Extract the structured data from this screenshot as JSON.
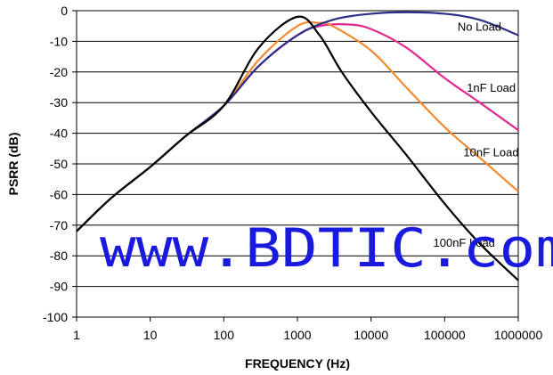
{
  "chart_data": {
    "type": "line",
    "title": "",
    "xlabel": "FREQUENCY (Hz)",
    "ylabel": "PSRR (dB)",
    "xscale": "log",
    "xlim": [
      1,
      1000000
    ],
    "ylim": [
      -100,
      0
    ],
    "grid": "horizontal",
    "x_ticks": [
      "1",
      "10",
      "100",
      "1000",
      "10000",
      "100000",
      "1000000"
    ],
    "y_ticks": [
      "0",
      "-10",
      "-20",
      "-30",
      "-40",
      "-50",
      "-60",
      "-70",
      "-80",
      "-90",
      "-100"
    ],
    "series": [
      {
        "name": "No Load",
        "color": "#2e2f86",
        "x": [
          1,
          3,
          10,
          30,
          100,
          300,
          1000,
          3000,
          10000,
          30000,
          100000,
          300000,
          1000000
        ],
        "y": [
          -72,
          -61,
          -51,
          -41,
          -31,
          -18,
          -8,
          -3,
          -1,
          -0.5,
          -1,
          -3,
          -8
        ]
      },
      {
        "name": "1nF Load",
        "color": "#e0288f",
        "x": [
          1,
          3,
          10,
          30,
          100,
          300,
          1000,
          2000,
          5000,
          10000,
          30000,
          100000,
          300000,
          1000000
        ],
        "y": [
          -72,
          -61,
          -51,
          -41,
          -31,
          -18,
          -8,
          -5,
          -4.5,
          -6,
          -12,
          -22,
          -30,
          -39
        ]
      },
      {
        "name": "10nF Load",
        "color": "#f28a30",
        "x": [
          1,
          3,
          10,
          30,
          100,
          300,
          1000,
          2000,
          3000,
          10000,
          30000,
          100000,
          300000,
          1000000
        ],
        "y": [
          -72,
          -61,
          -51,
          -41,
          -31,
          -16,
          -5,
          -4,
          -5,
          -13,
          -25,
          -38,
          -48,
          -59
        ]
      },
      {
        "name": "100nF Load",
        "color": "#000000",
        "x": [
          1,
          3,
          10,
          30,
          100,
          300,
          1000,
          2000,
          4000,
          10000,
          30000,
          100000,
          300000,
          1000000
        ],
        "y": [
          -72,
          -61,
          -51,
          -41,
          -31,
          -12,
          -2,
          -8,
          -20,
          -33,
          -47,
          -63,
          -76,
          -88
        ]
      }
    ],
    "annotations": [
      {
        "text": "No Load",
        "x": 150000,
        "y": -6.5
      },
      {
        "text": "1nF Load",
        "x": 200000,
        "y": -26.5
      },
      {
        "text": "10nF Load",
        "x": 180000,
        "y": -47.5
      },
      {
        "text": "100nF Load",
        "x": 70000,
        "y": -77
      }
    ],
    "watermark": {
      "text": "www.BDTIC.com",
      "color": "#1a1adf"
    }
  }
}
